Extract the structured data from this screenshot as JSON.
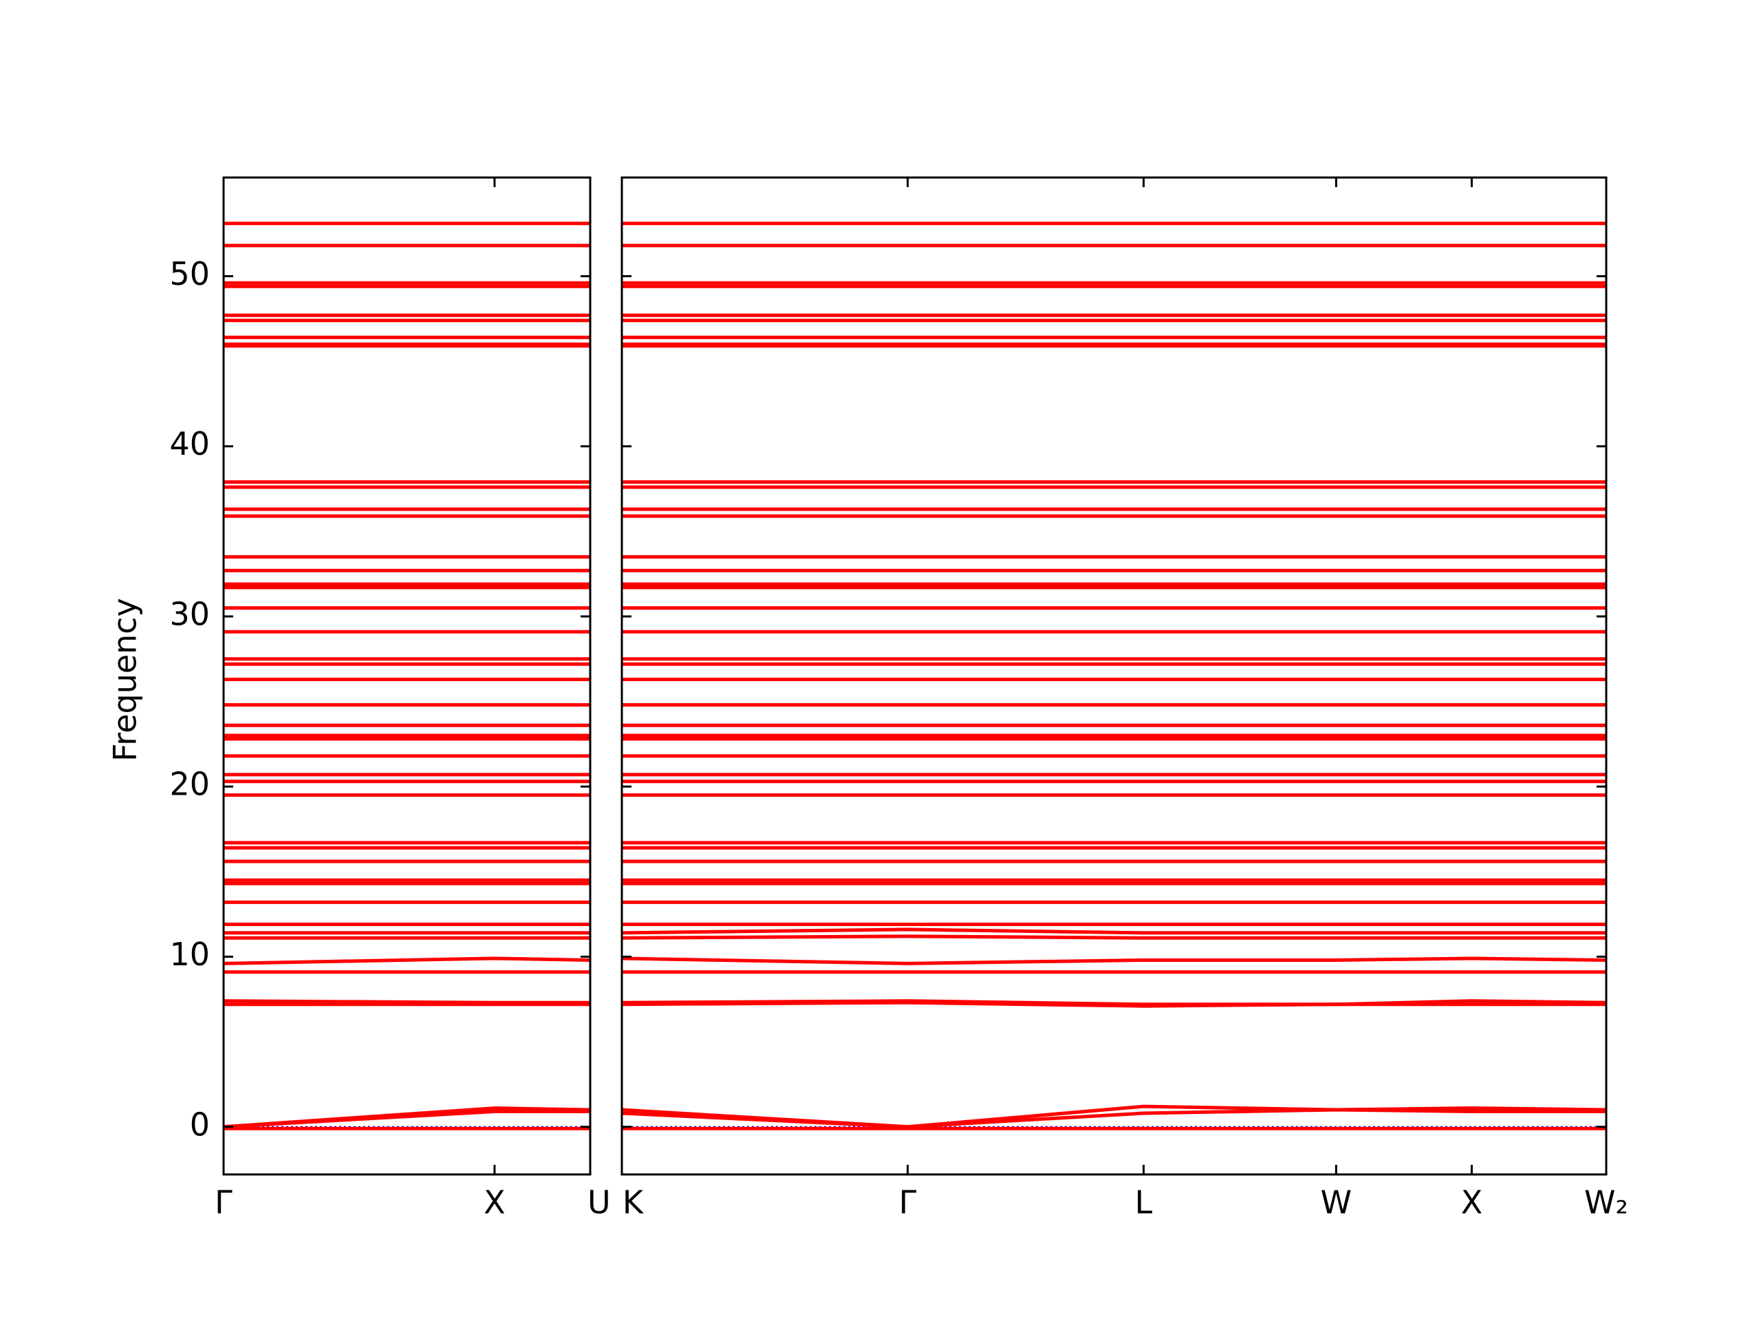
{
  "chart_data": [
    {
      "type": "line",
      "y_label": "Frequency",
      "color": "#ff0000",
      "zero_line_color": "#0000ff",
      "x": [
        0,
        1,
        1.353
      ],
      "xlim": [
        0,
        1.353
      ],
      "xticks": [
        {
          "value": 0,
          "label": "Γ"
        },
        {
          "value": 1,
          "label": "X"
        },
        {
          "value": 1.353,
          "label": "U"
        }
      ],
      "ylim": [
        -2.8,
        55.8
      ],
      "yticks": [
        0,
        10,
        20,
        30,
        40,
        50
      ],
      "series": [
        {
          "values": [
            53.1,
            53.1,
            53.1
          ]
        },
        {
          "values": [
            51.8,
            51.8,
            51.8
          ]
        },
        {
          "values": [
            49.6,
            49.6,
            49.6
          ]
        },
        {
          "values": [
            49.4,
            49.4,
            49.4
          ]
        },
        {
          "values": [
            47.7,
            47.7,
            47.7
          ]
        },
        {
          "values": [
            47.4,
            47.4,
            47.4
          ]
        },
        {
          "values": [
            46.4,
            46.4,
            46.4
          ]
        },
        {
          "values": [
            46.0,
            46.0,
            46.0
          ]
        },
        {
          "values": [
            45.9,
            45.9,
            45.9
          ]
        },
        {
          "values": [
            37.9,
            37.9,
            37.9
          ]
        },
        {
          "values": [
            37.6,
            37.6,
            37.6
          ]
        },
        {
          "values": [
            36.3,
            36.3,
            36.3
          ]
        },
        {
          "values": [
            35.9,
            35.9,
            35.9
          ]
        },
        {
          "values": [
            33.5,
            33.5,
            33.5
          ]
        },
        {
          "values": [
            32.7,
            32.7,
            32.7
          ]
        },
        {
          "values": [
            31.9,
            31.9,
            31.9
          ]
        },
        {
          "values": [
            31.7,
            31.7,
            31.7
          ]
        },
        {
          "values": [
            30.5,
            30.5,
            30.5
          ]
        },
        {
          "values": [
            29.1,
            29.1,
            29.1
          ]
        },
        {
          "values": [
            27.5,
            27.5,
            27.5
          ]
        },
        {
          "values": [
            27.2,
            27.2,
            27.2
          ]
        },
        {
          "values": [
            26.3,
            26.3,
            26.3
          ]
        },
        {
          "values": [
            24.8,
            24.8,
            24.8
          ]
        },
        {
          "values": [
            23.6,
            23.6,
            23.6
          ]
        },
        {
          "values": [
            23.0,
            23.0,
            23.0
          ]
        },
        {
          "values": [
            22.8,
            22.8,
            22.8
          ]
        },
        {
          "values": [
            21.8,
            21.8,
            21.8
          ]
        },
        {
          "values": [
            20.7,
            20.7,
            20.7
          ]
        },
        {
          "values": [
            20.3,
            20.3,
            20.3
          ]
        },
        {
          "values": [
            19.5,
            19.5,
            19.5
          ]
        },
        {
          "values": [
            16.7,
            16.7,
            16.7
          ]
        },
        {
          "values": [
            16.4,
            16.4,
            16.4
          ]
        },
        {
          "values": [
            15.6,
            15.6,
            15.6
          ]
        },
        {
          "values": [
            14.5,
            14.5,
            14.5
          ]
        },
        {
          "values": [
            14.3,
            14.3,
            14.3
          ]
        },
        {
          "values": [
            13.2,
            13.2,
            13.2
          ]
        },
        {
          "values": [
            11.9,
            11.9,
            11.9
          ]
        },
        {
          "values": [
            11.4,
            11.4,
            11.4
          ]
        },
        {
          "values": [
            11.1,
            11.1,
            11.1
          ]
        },
        {
          "values": [
            9.6,
            9.9,
            9.8
          ]
        },
        {
          "values": [
            9.1,
            9.1,
            9.1
          ]
        },
        {
          "values": [
            7.4,
            7.3,
            7.3
          ]
        },
        {
          "values": [
            7.2,
            7.2,
            7.2
          ]
        },
        {
          "values": [
            0,
            1.1,
            1.0
          ]
        },
        {
          "values": [
            0,
            0.9,
            0.9
          ]
        },
        {
          "values": [
            -0.1,
            -0.1,
            -0.1
          ]
        }
      ]
    },
    {
      "type": "line",
      "color": "#ff0000",
      "zero_line_color": "#0000ff",
      "x": [
        0,
        1.054,
        1.924,
        2.634,
        3.134,
        3.63
      ],
      "xlim": [
        0,
        3.63
      ],
      "xticks": [
        {
          "value": 0,
          "label": "K"
        },
        {
          "value": 1.054,
          "label": "Γ"
        },
        {
          "value": 1.924,
          "label": "L"
        },
        {
          "value": 2.634,
          "label": "W"
        },
        {
          "value": 3.134,
          "label": "X"
        },
        {
          "value": 3.63,
          "label": "W₂"
        }
      ],
      "ylim": [
        -2.8,
        55.8
      ],
      "yticks": [
        0,
        10,
        20,
        30,
        40,
        50
      ],
      "series": [
        {
          "values": [
            53.1,
            53.1,
            53.1,
            53.1,
            53.1,
            53.1
          ]
        },
        {
          "values": [
            51.8,
            51.8,
            51.8,
            51.8,
            51.8,
            51.8
          ]
        },
        {
          "values": [
            49.6,
            49.6,
            49.6,
            49.6,
            49.6,
            49.6
          ]
        },
        {
          "values": [
            49.4,
            49.4,
            49.4,
            49.4,
            49.4,
            49.4
          ]
        },
        {
          "values": [
            47.7,
            47.7,
            47.7,
            47.7,
            47.7,
            47.7
          ]
        },
        {
          "values": [
            47.4,
            47.4,
            47.4,
            47.4,
            47.4,
            47.4
          ]
        },
        {
          "values": [
            46.4,
            46.4,
            46.4,
            46.4,
            46.4,
            46.4
          ]
        },
        {
          "values": [
            46.0,
            46.0,
            46.0,
            46.0,
            46.0,
            46.0
          ]
        },
        {
          "values": [
            45.9,
            45.9,
            45.9,
            45.9,
            45.9,
            45.9
          ]
        },
        {
          "values": [
            37.9,
            37.9,
            37.9,
            37.9,
            37.9,
            37.9
          ]
        },
        {
          "values": [
            37.6,
            37.6,
            37.6,
            37.6,
            37.6,
            37.6
          ]
        },
        {
          "values": [
            36.3,
            36.3,
            36.3,
            36.3,
            36.3,
            36.3
          ]
        },
        {
          "values": [
            35.9,
            35.9,
            35.9,
            35.9,
            35.9,
            35.9
          ]
        },
        {
          "values": [
            33.5,
            33.5,
            33.5,
            33.5,
            33.5,
            33.5
          ]
        },
        {
          "values": [
            32.7,
            32.7,
            32.7,
            32.7,
            32.7,
            32.7
          ]
        },
        {
          "values": [
            31.9,
            31.9,
            31.9,
            31.9,
            31.9,
            31.9
          ]
        },
        {
          "values": [
            31.7,
            31.7,
            31.7,
            31.7,
            31.7,
            31.7
          ]
        },
        {
          "values": [
            30.5,
            30.5,
            30.5,
            30.5,
            30.5,
            30.5
          ]
        },
        {
          "values": [
            29.1,
            29.1,
            29.1,
            29.1,
            29.1,
            29.1
          ]
        },
        {
          "values": [
            27.5,
            27.5,
            27.5,
            27.5,
            27.5,
            27.5
          ]
        },
        {
          "values": [
            27.2,
            27.2,
            27.2,
            27.2,
            27.2,
            27.2
          ]
        },
        {
          "values": [
            26.3,
            26.3,
            26.3,
            26.3,
            26.3,
            26.3
          ]
        },
        {
          "values": [
            24.8,
            24.8,
            24.8,
            24.8,
            24.8,
            24.8
          ]
        },
        {
          "values": [
            23.6,
            23.6,
            23.6,
            23.6,
            23.6,
            23.6
          ]
        },
        {
          "values": [
            23.0,
            23.0,
            23.0,
            23.0,
            23.0,
            23.0
          ]
        },
        {
          "values": [
            22.8,
            22.8,
            22.8,
            22.8,
            22.8,
            22.8
          ]
        },
        {
          "values": [
            21.8,
            21.8,
            21.8,
            21.8,
            21.8,
            21.8
          ]
        },
        {
          "values": [
            20.7,
            20.7,
            20.7,
            20.7,
            20.7,
            20.7
          ]
        },
        {
          "values": [
            20.3,
            20.3,
            20.3,
            20.3,
            20.3,
            20.3
          ]
        },
        {
          "values": [
            19.5,
            19.5,
            19.5,
            19.5,
            19.5,
            19.5
          ]
        },
        {
          "values": [
            16.7,
            16.7,
            16.7,
            16.7,
            16.7,
            16.7
          ]
        },
        {
          "values": [
            16.4,
            16.4,
            16.4,
            16.4,
            16.4,
            16.4
          ]
        },
        {
          "values": [
            15.6,
            15.6,
            15.6,
            15.6,
            15.6,
            15.6
          ]
        },
        {
          "values": [
            14.5,
            14.5,
            14.5,
            14.5,
            14.5,
            14.5
          ]
        },
        {
          "values": [
            14.3,
            14.3,
            14.3,
            14.3,
            14.3,
            14.3
          ]
        },
        {
          "values": [
            13.2,
            13.2,
            13.2,
            13.2,
            13.2,
            13.2
          ]
        },
        {
          "values": [
            11.9,
            11.9,
            11.9,
            11.9,
            11.9,
            11.9
          ]
        },
        {
          "values": [
            11.4,
            11.6,
            11.4,
            11.4,
            11.4,
            11.4
          ]
        },
        {
          "values": [
            11.1,
            11.2,
            11.1,
            11.1,
            11.1,
            11.1
          ]
        },
        {
          "values": [
            9.9,
            9.6,
            9.8,
            9.8,
            9.9,
            9.8
          ]
        },
        {
          "values": [
            9.1,
            9.1,
            9.1,
            9.1,
            9.1,
            9.1
          ]
        },
        {
          "values": [
            7.3,
            7.4,
            7.2,
            7.2,
            7.4,
            7.3
          ]
        },
        {
          "values": [
            7.2,
            7.3,
            7.1,
            7.2,
            7.2,
            7.2
          ]
        },
        {
          "values": [
            1.0,
            0,
            1.2,
            1.0,
            1.1,
            1.0
          ]
        },
        {
          "values": [
            0.8,
            0,
            0.8,
            1.0,
            0.9,
            0.9
          ]
        },
        {
          "values": [
            -0.1,
            -0.1,
            -0.1,
            -0.1,
            -0.1,
            -0.1
          ]
        }
      ]
    }
  ]
}
